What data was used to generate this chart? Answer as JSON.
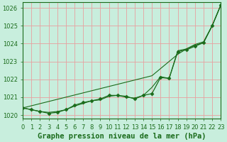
{
  "xlabel": "Graphe pression niveau de la mer (hPa)",
  "x": [
    0,
    1,
    2,
    3,
    4,
    5,
    6,
    7,
    8,
    9,
    10,
    11,
    12,
    13,
    14,
    15,
    16,
    17,
    18,
    19,
    20,
    21,
    22,
    23
  ],
  "y_marked": [
    1020.4,
    1020.3,
    1020.2,
    1020.1,
    1020.15,
    1020.3,
    1020.55,
    1020.7,
    1020.8,
    1020.9,
    1021.1,
    1021.1,
    1021.05,
    1020.9,
    1021.1,
    1021.2,
    1022.1,
    1022.05,
    1023.55,
    1023.65,
    1023.85,
    1024.05,
    1025.0,
    1026.15
  ],
  "y_smooth": [
    1020.4,
    1020.3,
    1020.2,
    1020.15,
    1020.2,
    1020.3,
    1020.5,
    1020.65,
    1020.8,
    1020.85,
    1021.05,
    1021.1,
    1021.0,
    1020.95,
    1021.1,
    1021.55,
    1022.15,
    1022.05,
    1023.6,
    1023.7,
    1023.9,
    1024.05,
    1025.0,
    1026.15
  ],
  "y_trend": [
    1020.4,
    1020.52,
    1020.64,
    1020.76,
    1020.88,
    1021.0,
    1021.12,
    1021.24,
    1021.36,
    1021.48,
    1021.6,
    1021.72,
    1021.84,
    1021.96,
    1022.08,
    1022.2,
    1022.6,
    1023.0,
    1023.4,
    1023.7,
    1023.95,
    1024.1,
    1025.0,
    1026.15
  ],
  "ylim": [
    1019.8,
    1026.3
  ],
  "xlim": [
    0,
    23
  ],
  "yticks": [
    1020,
    1021,
    1022,
    1023,
    1024,
    1025,
    1026
  ],
  "xticks": [
    0,
    1,
    2,
    3,
    4,
    5,
    6,
    7,
    8,
    9,
    10,
    11,
    12,
    13,
    14,
    15,
    16,
    17,
    18,
    19,
    20,
    21,
    22,
    23
  ],
  "line_color": "#1a6b1a",
  "marker": "D",
  "marker_size": 2.5,
  "bg_color": "#c8eedd",
  "grid_color": "#e8a0a0",
  "axis_color": "#1a6b1a",
  "label_color": "#1a6b1a",
  "xlabel_fontsize": 7.5,
  "tick_fontsize": 6
}
